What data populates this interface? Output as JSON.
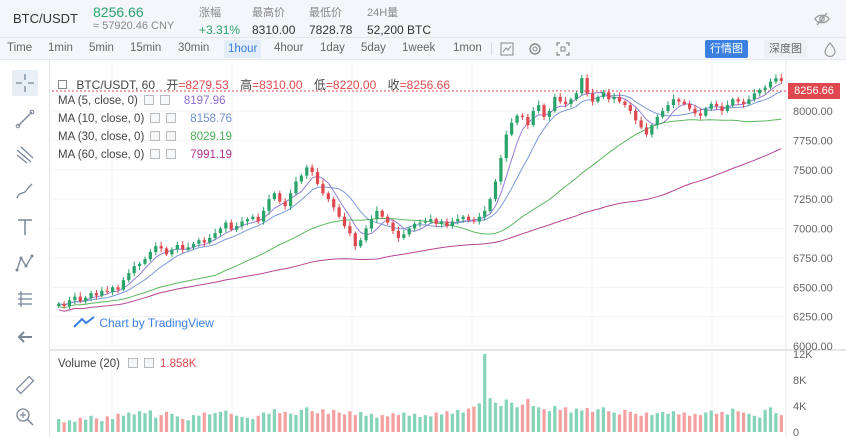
{
  "header": {
    "pair": "BTC/USDT",
    "price": "8256.66",
    "cny": "≈ 57920.46 CNY",
    "stats": [
      {
        "label": "涨幅",
        "value": "+3.31%"
      },
      {
        "label": "最高价",
        "value": "8310.00"
      },
      {
        "label": "最低价",
        "value": "7828.78"
      },
      {
        "label": "24H量",
        "value": "52,200 BTC"
      }
    ],
    "eye_icon": "eye-off-icon"
  },
  "toolbar": {
    "intervals": [
      "Time",
      "1min",
      "5min",
      "15min",
      "30min",
      "1hour",
      "4hour",
      "1day",
      "5day",
      "1week",
      "1mon"
    ],
    "active_interval": "1hour",
    "kline_label": "行情图",
    "depth_label": "深度图"
  },
  "chart_info": {
    "symbol": "BTC/USDT, 60",
    "open_label": "开",
    "open": "=8279.53",
    "high_label": "高",
    "high": "=8310.00",
    "low_label": "低",
    "low": "=8220.00",
    "close_label": "收",
    "close": "=8256.66",
    "current_price_tag": "8256.66",
    "watermark": "Chart by TradingView"
  },
  "indicators": [
    {
      "label": "MA (5, close, 0)",
      "value": "8197.96",
      "color": "#8a6fd1"
    },
    {
      "label": "MA (10, close, 0)",
      "value": "8158.76",
      "color": "#6f8fd1"
    },
    {
      "label": "MA (30, close, 0)",
      "value": "8029.19",
      "color": "#4caf50"
    },
    {
      "label": "MA (60, close, 0)",
      "value": "7991.19",
      "color": "#b0308a"
    }
  ],
  "volume": {
    "label": "Volume (20)",
    "value": "1.858K"
  },
  "colors": {
    "up": "#5cc4a0",
    "down": "#f08080",
    "accent": "#3b7fe0"
  },
  "chart_data": {
    "type": "candlestick",
    "price_axis_ticks": [
      "8256.66",
      "8000.00",
      "7750.00",
      "7500.00",
      "7250.00",
      "7000.00",
      "6750.00",
      "6500.00",
      "6250.00",
      "6000.00"
    ],
    "volume_axis_ticks": [
      "12K",
      "8K",
      "4K",
      "0"
    ],
    "ylim": [
      6000,
      8400
    ],
    "volume_lim": [
      0,
      12000
    ],
    "closes": [
      6360,
      6340,
      6390,
      6420,
      6380,
      6410,
      6450,
      6430,
      6470,
      6460,
      6500,
      6480,
      6560,
      6620,
      6680,
      6700,
      6740,
      6800,
      6850,
      6830,
      6780,
      6820,
      6860,
      6820,
      6840,
      6870,
      6900,
      6880,
      6920,
      6960,
      7000,
      7050,
      6990,
      7020,
      7060,
      7080,
      7100,
      7060,
      7150,
      7250,
      7300,
      7230,
      7190,
      7300,
      7400,
      7450,
      7520,
      7480,
      7380,
      7300,
      7250,
      7180,
      7100,
      7020,
      6960,
      6850,
      6900,
      7000,
      7080,
      7150,
      7100,
      7050,
      6980,
      6920,
      6950,
      7000,
      7040,
      7050,
      7060,
      7080,
      7040,
      7060,
      7020,
      7060,
      7080,
      7100,
      7070,
      7060,
      7100,
      7150,
      7250,
      7400,
      7600,
      7800,
      7900,
      7960,
      7950,
      7880,
      8000,
      8050,
      7950,
      8000,
      8120,
      8080,
      8060,
      8100,
      8150,
      8280,
      8150,
      8080,
      8120,
      8160,
      8100,
      8120,
      8080,
      8050,
      8000,
      7920,
      7860,
      7800,
      7880,
      7950,
      8000,
      8050,
      8100,
      8080,
      8060,
      8020,
      7980,
      7960,
      8020,
      8060,
      8040,
      8000,
      8050,
      8100,
      8080,
      8060,
      8100,
      8150,
      8180,
      8200,
      8250,
      8279,
      8256
    ],
    "volumes": [
      2000,
      1500,
      1800,
      1600,
      2200,
      1900,
      2500,
      2100,
      1700,
      2400,
      2000,
      2800,
      2500,
      3000,
      2700,
      3200,
      2900,
      3300,
      2200,
      2600,
      3100,
      2800,
      2400,
      2000,
      1800,
      2600,
      2500,
      3000,
      2700,
      2900,
      3100,
      3300,
      2800,
      2500,
      2300,
      2200,
      2000,
      2500,
      3000,
      2800,
      3500,
      2900,
      3100,
      2800,
      2600,
      3400,
      3800,
      3200,
      2900,
      3500,
      2800,
      3400,
      3000,
      2700,
      3200,
      2600,
      3100,
      2500,
      2800,
      2200,
      2600,
      2400,
      2900,
      2600,
      3000,
      2500,
      2800,
      2300,
      2600,
      2400,
      3000,
      2700,
      3200,
      2800,
      3400,
      3000,
      3600,
      3900,
      4400,
      12000,
      5200,
      4500,
      4000,
      5000,
      4500,
      3800,
      4200,
      5100,
      4000,
      3800,
      3500,
      3200,
      4000,
      3400,
      3800,
      3000,
      3600,
      3300,
      3700,
      3100,
      3500,
      3800,
      3200,
      3000,
      2700,
      3400,
      3100,
      2800,
      2500,
      3000,
      2600,
      2900,
      3100,
      2800,
      3200,
      2700,
      3000,
      2500,
      2800,
      2600,
      3000,
      3300,
      2800,
      3100,
      2700,
      3600,
      3200,
      3000,
      2800,
      2500,
      2200,
      3400,
      3800,
      2900,
      2600
    ]
  }
}
